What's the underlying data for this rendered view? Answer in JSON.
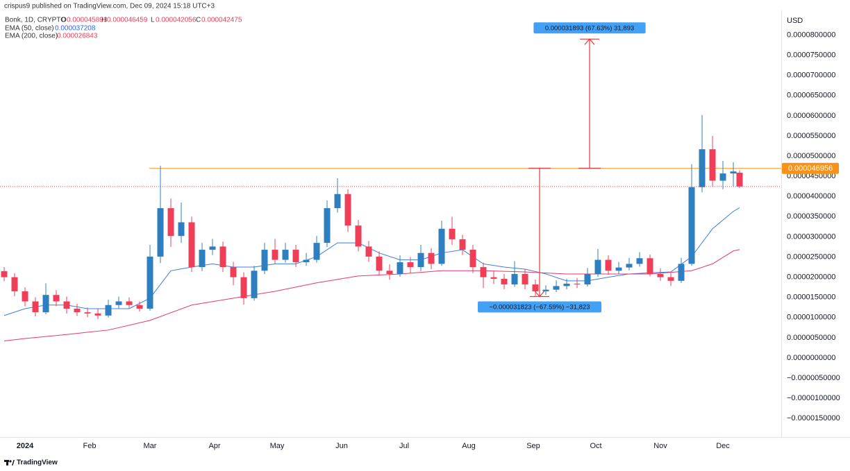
{
  "header": {
    "attribution": "crispus9 published on TradingView.com, Dec 09, 2024 15:18 UTC+3",
    "symbol": "Bonk, 1D, CRYPTO",
    "ohlc_letters": [
      "O",
      "H",
      "L",
      "C"
    ],
    "footer": "TradingView"
  },
  "chart_data": {
    "type": "candlestick",
    "currency": "USD",
    "x": [
      -10,
      -5,
      0,
      5,
      10,
      15,
      20,
      25,
      30,
      35,
      40,
      45,
      50,
      55,
      60,
      65,
      70,
      75,
      80,
      85,
      90,
      95,
      100,
      105,
      110,
      115,
      120,
      125,
      130,
      135,
      140,
      145,
      150,
      155,
      160,
      165,
      170,
      175,
      180,
      185,
      190,
      195,
      200,
      205,
      210,
      215,
      220,
      225,
      230,
      235,
      240,
      245,
      250,
      255,
      260,
      265,
      270,
      275,
      280,
      285,
      290,
      295,
      300,
      305,
      310,
      315,
      320,
      325,
      330,
      335,
      340,
      343
    ],
    "open": [
      2.15e-05,
      2e-05,
      1.65e-05,
      1.4e-05,
      1.13e-05,
      1.56e-05,
      1.4e-05,
      1.22e-05,
      1.13e-05,
      1.1e-05,
      1.05e-05,
      1.31e-05,
      1.4e-05,
      1.31e-05,
      1.22e-05,
      2.51e-05,
      3.71e-05,
      3.02e-05,
      3.36e-05,
      2.25e-05,
      2.68e-05,
      2.76e-05,
      2.25e-05,
      2e-05,
      1.48e-05,
      2.16e-05,
      2.68e-05,
      2.43e-05,
      2.68e-05,
      2.37e-05,
      2.43e-05,
      2.85e-05,
      3.71e-05,
      4.06e-05,
      3.28e-05,
      2.76e-05,
      2.51e-05,
      2.16e-05,
      2.08e-05,
      2.37e-05,
      2.25e-05,
      2.6e-05,
      2.33e-05,
      3.2e-05,
      2.94e-05,
      2.68e-05,
      2.25e-05,
      2e-05,
      1.96e-05,
      1.82e-05,
      2.08e-05,
      1.82e-05,
      1.65e-05,
      1.69e-05,
      1.78e-05,
      1.84e-05,
      1.82e-05,
      2.08e-05,
      2.43e-05,
      2.16e-05,
      2.24e-05,
      2.33e-05,
      2.47e-05,
      2.08e-05,
      2e-05,
      1.91e-05,
      2.33e-05,
      4.23e-05,
      5.17e-05,
      4.39e-05,
      4.57e-05,
      4.5893e-05
    ],
    "high": [
      2.25e-05,
      2.1e-05,
      1.75e-05,
      1.5e-05,
      1.85e-05,
      1.68e-05,
      1.52e-05,
      1.34e-05,
      1.25e-05,
      1.22e-05,
      1.44e-05,
      1.52e-05,
      1.5e-05,
      1.4e-05,
      2.8e-05,
      4.76e-05,
      3.95e-05,
      3.85e-05,
      3.5e-05,
      2.85e-05,
      2.95e-05,
      2.88e-05,
      2.38e-05,
      2.12e-05,
      2.28e-05,
      2.85e-05,
      2.95e-05,
      2.85e-05,
      2.8e-05,
      2.6e-05,
      3.02e-05,
      3.9e-05,
      4.45e-05,
      4.18e-05,
      3.42e-05,
      2.9e-05,
      2.64e-05,
      2.32e-05,
      2.54e-05,
      2.5e-05,
      2.8e-05,
      2.72e-05,
      3.4e-05,
      3.5e-05,
      3.05e-05,
      2.8e-05,
      2.36e-05,
      2.15e-05,
      2.08e-05,
      2.4e-05,
      2.2e-05,
      1.94e-05,
      1.8e-05,
      1.92e-05,
      1.96e-05,
      1.98e-05,
      2.23e-05,
      2.7e-05,
      2.54e-05,
      2.38e-05,
      2.48e-05,
      2.62e-05,
      2.56e-05,
      2.22e-05,
      2.1e-05,
      2.48e-05,
      4.8e-05,
      6.02e-05,
      5.5e-05,
      4.88e-05,
      4.85e-05,
      4.6459e-05
    ],
    "low": [
      1.9e-05,
      1.53e-05,
      1.28e-05,
      1.03e-05,
      1.08e-05,
      1.28e-05,
      1.1e-05,
      1.04e-05,
      1.01e-05,
      9.6e-06,
      1e-05,
      1.23e-05,
      1.23e-05,
      1.15e-05,
      1.17e-05,
      2.35e-05,
      2.75e-05,
      2.85e-05,
      2.13e-05,
      2.15e-05,
      2.55e-05,
      2.13e-05,
      1.8e-05,
      1.32e-05,
      1.42e-05,
      2.08e-05,
      2.33e-05,
      2.36e-05,
      2.25e-05,
      2.28e-05,
      2.36e-05,
      2.75e-05,
      3.6e-05,
      3.12e-05,
      2.64e-05,
      2.38e-05,
      2.04e-05,
      1.94e-05,
      2.01e-05,
      2.1e-05,
      2.15e-05,
      2.2e-05,
      2.28e-05,
      2.8e-05,
      2.55e-05,
      2.1e-05,
      1.73e-05,
      1.83e-05,
      1.7e-05,
      1.76e-05,
      1.7e-05,
      1.52e-05,
      1.56e-05,
      1.63e-05,
      1.7e-05,
      1.73e-05,
      1.77e-05,
      2.01e-05,
      2.06e-05,
      2.08e-05,
      2.17e-05,
      2.26e-05,
      2.02e-05,
      1.91e-05,
      1.78e-05,
      1.86e-05,
      2.28e-05,
      4.1e-05,
      4.25e-05,
      4.18e-05,
      4.25e-05,
      4.2056e-05
    ],
    "close": [
      2e-05,
      1.65e-05,
      1.4e-05,
      1.13e-05,
      1.56e-05,
      1.4e-05,
      1.22e-05,
      1.13e-05,
      1.1e-05,
      1.05e-05,
      1.31e-05,
      1.4e-05,
      1.31e-05,
      1.22e-05,
      2.51e-05,
      3.71e-05,
      3.02e-05,
      3.36e-05,
      2.25e-05,
      2.68e-05,
      2.76e-05,
      2.25e-05,
      2e-05,
      1.48e-05,
      2.16e-05,
      2.68e-05,
      2.43e-05,
      2.68e-05,
      2.37e-05,
      2.43e-05,
      2.85e-05,
      3.71e-05,
      4.06e-05,
      3.28e-05,
      2.76e-05,
      2.51e-05,
      2.16e-05,
      2.08e-05,
      2.37e-05,
      2.25e-05,
      2.6e-05,
      2.33e-05,
      3.2e-05,
      2.94e-05,
      2.68e-05,
      2.25e-05,
      2e-05,
      1.96e-05,
      1.82e-05,
      2.08e-05,
      1.82e-05,
      1.65e-05,
      1.69e-05,
      1.78e-05,
      1.84e-05,
      1.82e-05,
      2.08e-05,
      2.43e-05,
      2.16e-05,
      2.24e-05,
      2.33e-05,
      2.47e-05,
      2.08e-05,
      2e-05,
      1.91e-05,
      2.33e-05,
      4.23e-05,
      5.17e-05,
      4.39e-05,
      4.57e-05,
      4.62e-05,
      4.2475e-05
    ],
    "up_color": "#2e7fc0",
    "down_color": "#ef3f58",
    "series": [
      {
        "name": "EMA (50, close)",
        "color": "#3d7be0",
        "x": [
          -10,
          0,
          10,
          20,
          30,
          40,
          50,
          60,
          70,
          80,
          90,
          100,
          110,
          120,
          130,
          140,
          150,
          160,
          170,
          180,
          190,
          200,
          210,
          220,
          230,
          240,
          250,
          260,
          270,
          280,
          290,
          300,
          310,
          320,
          330,
          340,
          343
        ],
        "values": [
          1.05e-05,
          1.22e-05,
          1.31e-05,
          1.31e-05,
          1.22e-05,
          1.22e-05,
          1.22e-05,
          1.48e-05,
          2.16e-05,
          2.25e-05,
          2.33e-05,
          2.25e-05,
          2.25e-05,
          2.33e-05,
          2.33e-05,
          2.51e-05,
          2.85e-05,
          2.85e-05,
          2.6e-05,
          2.43e-05,
          2.43e-05,
          2.6e-05,
          2.68e-05,
          2.33e-05,
          2.25e-05,
          2.2e-05,
          2.08e-05,
          1.91e-05,
          1.91e-05,
          2e-05,
          2.08e-05,
          2.11e-05,
          2.13e-05,
          2.51e-05,
          3.2e-05,
          3.63e-05,
          3.7208e-05
        ]
      },
      {
        "name": "EMA (200, close)",
        "color": "#e8366b",
        "x": [
          -10,
          0,
          20,
          40,
          60,
          80,
          100,
          120,
          140,
          160,
          180,
          200,
          220,
          240,
          260,
          280,
          300,
          320,
          330,
          340,
          343
        ],
        "values": [
          4.2e-06,
          4.8e-06,
          5.8e-06,
          6.9e-06,
          9.3e-06,
          1.31e-05,
          1.48e-05,
          1.65e-05,
          1.86e-05,
          2.03e-05,
          2.08e-05,
          2.16e-05,
          2.16e-05,
          2.13e-05,
          2.08e-05,
          2.08e-05,
          2.08e-05,
          2.16e-05,
          2.33e-05,
          2.65e-05,
          2.6843e-05
        ]
      }
    ],
    "hline": {
      "value": 4.6956e-05,
      "color": "#f7931a"
    },
    "measures": [
      {
        "label": "0.000031893 (67.63%) 31,893",
        "x": 271,
        "from": 4.7e-05,
        "to": 7.9e-05
      },
      {
        "label": "−0.000031823 (−67.59%) −31,823",
        "x": 247,
        "from": 4.7e-05,
        "to": 1.52e-05
      }
    ],
    "xlim": [
      -12,
      363
    ],
    "xticks": [
      {
        "value": 0,
        "label": "2024"
      },
      {
        "value": 31,
        "label": "Feb"
      },
      {
        "value": 60,
        "label": "Mar"
      },
      {
        "value": 91,
        "label": "Apr"
      },
      {
        "value": 121,
        "label": "May"
      },
      {
        "value": 152,
        "label": "Jun"
      },
      {
        "value": 182,
        "label": "Jul"
      },
      {
        "value": 213,
        "label": "Aug"
      },
      {
        "value": 244,
        "label": "Sep"
      },
      {
        "value": 274,
        "label": "Oct"
      },
      {
        "value": 305,
        "label": "Nov"
      },
      {
        "value": 335,
        "label": "Dec"
      }
    ],
    "ylim": [
      -1.96e-05,
      8.61e-05
    ],
    "yticks": [
      {
        "value": 8e-05,
        "label": "0.0000800000"
      },
      {
        "value": 7.5e-05,
        "label": "0.0000750000"
      },
      {
        "value": 7e-05,
        "label": "0.0000700000"
      },
      {
        "value": 6.5e-05,
        "label": "0.0000650000"
      },
      {
        "value": 6e-05,
        "label": "0.0000600000"
      },
      {
        "value": 5.5e-05,
        "label": "0.0000550000"
      },
      {
        "value": 5e-05,
        "label": "0.0000500000"
      },
      {
        "value": 4.5e-05,
        "label": "0.0000450000"
      },
      {
        "value": 4e-05,
        "label": "0.0000400000"
      },
      {
        "value": 3.5e-05,
        "label": "0.0000350000"
      },
      {
        "value": 3e-05,
        "label": "0.0000300000"
      },
      {
        "value": 2.5e-05,
        "label": "0.0000250000"
      },
      {
        "value": 2e-05,
        "label": "0.0000200000"
      },
      {
        "value": 1.5e-05,
        "label": "0.0000150000"
      },
      {
        "value": 1e-05,
        "label": "0.0000100000"
      },
      {
        "value": 5e-06,
        "label": "0.0000050000"
      },
      {
        "value": 0,
        "label": "0.0000000000"
      },
      {
        "value": -5e-06,
        "label": "−0.0000050000"
      },
      {
        "value": -1e-05,
        "label": "−0.0000100000"
      },
      {
        "value": -1.5e-05,
        "label": "−0.0000150000"
      }
    ],
    "grid": false
  }
}
